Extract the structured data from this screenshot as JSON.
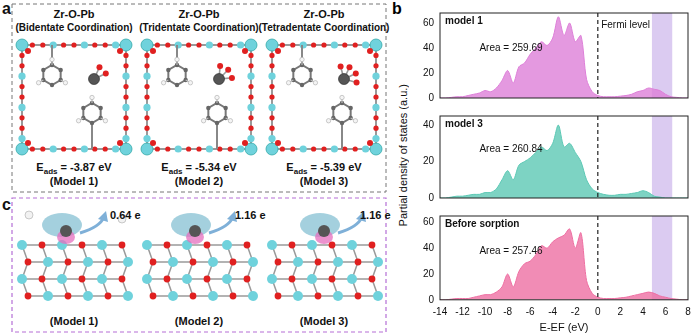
{
  "panels": {
    "a": {
      "letter": "a",
      "models": [
        {
          "title": "Zr-O-Pb",
          "coordination": "(Bidentate Coordination)",
          "energy": {
            "symbol": "E",
            "subscript": "ads",
            "relation": "=",
            "value": -3.87,
            "unit": "eV"
          },
          "model": "(Model 1)"
        },
        {
          "title": "Zr-O-Pb",
          "coordination": "(Tridentate Coordination)",
          "energy": {
            "symbol": "E",
            "subscript": "ads",
            "relation": "=",
            "value": -5.34,
            "unit": "eV"
          },
          "model": "(Model 2)"
        },
        {
          "title": "Zr-O-Pb",
          "coordination": "(Tetradentate Coordination)",
          "energy": {
            "symbol": "E",
            "subscript": "ads",
            "relation": "=",
            "value": -5.39,
            "unit": "eV"
          },
          "model": "(Model 3)"
        }
      ]
    },
    "b": {
      "letter": "b"
    },
    "c": {
      "letter": "c",
      "models": [
        {
          "charge": 0.64,
          "unit": "e",
          "model": "(Model 1)"
        },
        {
          "charge": 1.16,
          "unit": "e",
          "model": "(Model 2)"
        },
        {
          "charge": 1.16,
          "unit": "e",
          "model": "(Model 3)"
        }
      ]
    }
  },
  "chart_data": [
    {
      "type": "area",
      "title": "model 1",
      "color": "#dd7fd8",
      "x": [
        -14,
        -13.5,
        -13,
        -12.5,
        -12,
        -11.5,
        -11,
        -10.5,
        -10,
        -9.5,
        -9,
        -8.5,
        -8,
        -7.5,
        -7,
        -6.5,
        -6,
        -5.5,
        -5,
        -4.5,
        -4,
        -3.5,
        -3,
        -2.5,
        -2,
        -1.5,
        -1,
        -0.5,
        0,
        0.5,
        1,
        1.5,
        2,
        2.5,
        3,
        3.5,
        4,
        4.5,
        5,
        5.5,
        6,
        6.5,
        7,
        7.5,
        8
      ],
      "values": [
        0,
        0,
        0.5,
        1,
        1,
        2,
        3,
        4,
        6,
        5,
        8,
        14,
        22,
        12,
        25,
        28,
        35,
        40,
        45,
        42,
        48,
        65,
        50,
        60,
        45,
        50,
        15,
        5,
        2,
        1,
        1,
        1,
        1.5,
        2,
        3,
        5,
        6,
        8,
        7,
        6,
        3,
        1,
        0.5,
        0,
        0
      ],
      "xlim": [
        -14,
        8
      ],
      "xticks": [
        -14,
        -12,
        -10,
        -8,
        -6,
        -4,
        -2,
        0,
        2,
        4,
        6,
        8
      ],
      "ylim": [
        0,
        68
      ],
      "yticks": [
        0,
        20,
        40,
        60
      ],
      "grid": false,
      "tick_labels": "y",
      "annotations": [
        {
          "text": "Area = 259.69",
          "x": -10.5,
          "y": 40
        },
        {
          "text": "Fermi level",
          "x": 0.3,
          "y": 58
        }
      ],
      "fermi_level": 0,
      "shaded_range": [
        4.8,
        6.6
      ]
    },
    {
      "type": "area",
      "title": "model 3",
      "color": "#5cc8b4",
      "ylabel": "Partial density of states (a.u.)",
      "x": [
        -14,
        -13.5,
        -13,
        -12.5,
        -12,
        -11.5,
        -11,
        -10.5,
        -10,
        -9.5,
        -9,
        -8.5,
        -8,
        -7.5,
        -7,
        -6.5,
        -6,
        -5.5,
        -5,
        -4.5,
        -4,
        -3.5,
        -3,
        -2.5,
        -2,
        -1.5,
        -1,
        -0.5,
        0,
        0.5,
        1,
        1.5,
        2,
        2.5,
        3,
        3.5,
        4,
        4.5,
        5,
        5.5,
        6,
        6.5,
        7,
        7.5,
        8
      ],
      "values": [
        0,
        0,
        0.5,
        1,
        1,
        1.5,
        2,
        2,
        3,
        3,
        5,
        10,
        15,
        10,
        18,
        20,
        22,
        25,
        28,
        26,
        30,
        40,
        28,
        30,
        25,
        20,
        10,
        5,
        3,
        2,
        1.5,
        1.5,
        2,
        2,
        2.5,
        3,
        4,
        3,
        1,
        0.5,
        0,
        0,
        0,
        0,
        0
      ],
      "xlim": [
        -14,
        8
      ],
      "xticks": [
        -14,
        -12,
        -10,
        -8,
        -6,
        -4,
        -2,
        0,
        2,
        4,
        6,
        8
      ],
      "ylim": [
        0,
        45
      ],
      "yticks": [
        0,
        20,
        40
      ],
      "grid": false,
      "tick_labels": "y",
      "annotations": [
        {
          "text": "Area = 260.84",
          "x": -10.5,
          "y": 27
        }
      ],
      "fermi_level": 0,
      "shaded_range": [
        4.8,
        6.6
      ]
    },
    {
      "type": "area",
      "title": "Before sorption",
      "color": "#ee6fa2",
      "xlabel": "E-EF (eV)",
      "x": [
        -14,
        -13.5,
        -13,
        -12.5,
        -12,
        -11.5,
        -11,
        -10.5,
        -10,
        -9.5,
        -9,
        -8.5,
        -8,
        -7.5,
        -7,
        -6.5,
        -6,
        -5.5,
        -5,
        -4.5,
        -4,
        -3.5,
        -3,
        -2.5,
        -2,
        -1.5,
        -1,
        -0.5,
        0,
        0.5,
        1,
        1.5,
        2,
        2.5,
        3,
        3.5,
        4,
        4.5,
        5,
        5.5,
        6,
        6.5,
        7,
        7.5,
        8
      ],
      "values": [
        0,
        0,
        0.5,
        1,
        1,
        1,
        2,
        3,
        4,
        4,
        6,
        10,
        20,
        10,
        22,
        28,
        30,
        35,
        42,
        40,
        45,
        48,
        50,
        55,
        40,
        52,
        15,
        5,
        2,
        1,
        1,
        1,
        1.5,
        2,
        3,
        4,
        5,
        6,
        5,
        3,
        2,
        1,
        0.5,
        0,
        0
      ],
      "xlim": [
        -14,
        8
      ],
      "xticks": [
        -14,
        -12,
        -10,
        -8,
        -6,
        -4,
        -2,
        0,
        2,
        4,
        6,
        8
      ],
      "ylim": [
        0,
        65
      ],
      "yticks": [
        0,
        20,
        40,
        60
      ],
      "grid": false,
      "annotations": [
        {
          "text": "Area = 257.46",
          "x": -10.5,
          "y": 38
        }
      ],
      "fermi_level": 0,
      "shaded_range": [
        4.8,
        6.6
      ]
    }
  ]
}
